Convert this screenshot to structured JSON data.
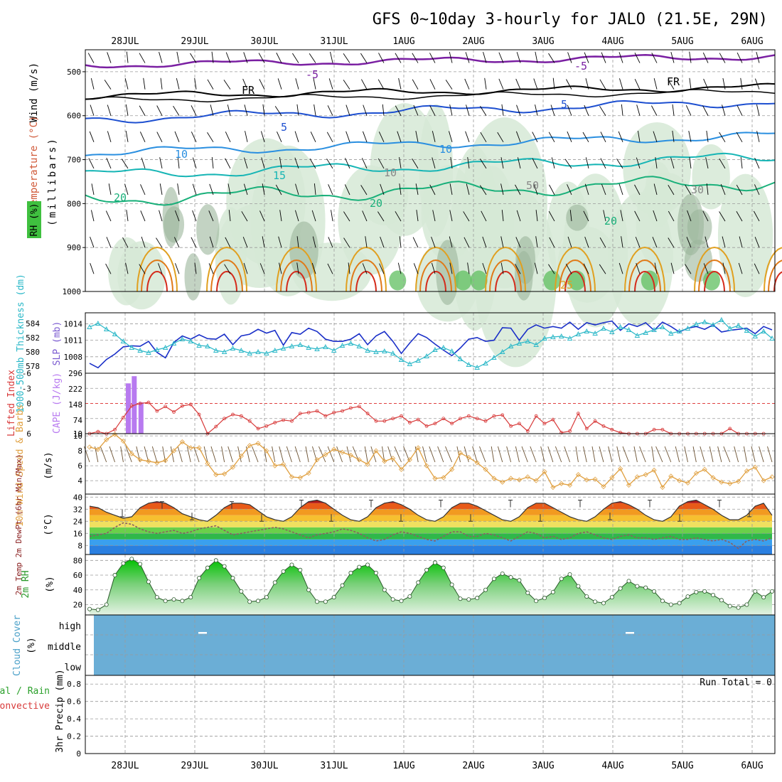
{
  "title": "GFS 0~10day 3-hourly for JALO (21.5E, 29N)",
  "dates": [
    "28JUL",
    "29JUL",
    "30JUL",
    "31JUL",
    "1AUG",
    "2AUG",
    "3AUG",
    "4AUG",
    "5AUG",
    "6AUG"
  ],
  "colors": {
    "frame": "#000000",
    "grid": "#9a9a9a",
    "rh_fill": "#d6e9d6",
    "rh_mid": "#9bb59b",
    "rh_high": "#5fbf5f",
    "temp_neg": "#7a1fa2",
    "temp_fr": "#000000",
    "temp_5": "#1d4fd0",
    "temp_10": "#2a8fe0",
    "temp_15": "#16b5b5",
    "temp_20": "#19b07a",
    "temp_25": "#e0a020",
    "temp_30": "#e07a18",
    "temp_35": "#d42a1a",
    "slp": "#1a2fc8",
    "thickness": "#2bb8c8",
    "cape": "#b87af0",
    "lifted": "#d83a3a",
    "wind10": "#e0a040",
    "cloud": "#6baed6",
    "dewpt": "#8a6060"
  },
  "charts": [
    {
      "id": "upper_air",
      "type": "contour",
      "ylabel": "(millibars)",
      "ylabel_parts": {
        "rh": "RH (%)",
        "temp": "Temperature (°C)",
        "wind": "Wind (m/s)"
      },
      "y_ticks": [
        500,
        600,
        700,
        800,
        900,
        1000
      ],
      "ylim": [
        1000,
        450
      ],
      "contour_labels": [
        "-5",
        "-5",
        "FR",
        "FR",
        "5",
        "5",
        "10",
        "10",
        "15",
        "20",
        "20",
        "20",
        "25",
        "10",
        "30",
        "50"
      ]
    },
    {
      "id": "thickness_slp",
      "type": "line",
      "ylabel_left": "1000-500mb Thickness (dm)",
      "ylabel_right": "SLP (mb)",
      "left_ticks": [
        578,
        580,
        582,
        584
      ],
      "right_ticks": [
        1008,
        1011,
        1014
      ],
      "slp_ylim": [
        1005,
        1016
      ],
      "thickness_ylim": [
        577,
        585.5
      ],
      "series": [
        {
          "name": "SLP (mb)",
          "values": [
            1006.8,
            1006.0,
            1007.5,
            1008.5,
            1009.8,
            1010.0,
            1009.9,
            1010.8,
            1008.8,
            1007.8,
            1010.6,
            1011.8,
            1011.2,
            1012.0,
            1011.3,
            1011.2,
            1012.1,
            1010.2,
            1011.8,
            1012.1,
            1013.0,
            1012.3,
            1012.8,
            1010.1,
            1012.4,
            1012.1,
            1013.2,
            1012.6,
            1011.2,
            1010.8,
            1010.8,
            1011.2,
            1012.2,
            1010.2,
            1011.8,
            1012.6,
            1010.8,
            1008.6,
            1010.5,
            1012.2,
            1011.5,
            1010.3,
            1009.2,
            1008.2,
            1009.6,
            1011.2,
            1011.5,
            1010.8,
            1011.0,
            1013.3,
            1013.2,
            1011.0,
            1013.0,
            1013.8,
            1013.2,
            1013.5,
            1013.2,
            1014.3,
            1013.0,
            1014.2,
            1013.8,
            1014.2,
            1014.5,
            1012.8,
            1014.0,
            1013.5,
            1014.2,
            1012.8,
            1014.3,
            1013.5,
            1012.5,
            1013.2,
            1013.5,
            1013.0,
            1013.8,
            1012.5,
            1012.8,
            1013.0,
            1013.2,
            1012.2,
            1013.5,
            1012.9
          ]
        },
        {
          "name": "1000-500mb Thickness (dm)",
          "values": [
            583.5,
            584.0,
            583.2,
            582.5,
            581.5,
            580.6,
            580.2,
            579.9,
            580.3,
            580.6,
            581.2,
            581.8,
            581.5,
            580.9,
            580.8,
            580.2,
            580.0,
            580.5,
            580.2,
            579.8,
            580.0,
            579.8,
            580.2,
            580.5,
            580.8,
            581.0,
            580.6,
            580.4,
            580.7,
            580.2,
            580.9,
            581.2,
            580.8,
            580.2,
            580.0,
            580.1,
            579.8,
            578.9,
            578.3,
            578.8,
            579.4,
            580.3,
            580.6,
            580.1,
            579.0,
            578.2,
            577.8,
            578.4,
            579.2,
            580.0,
            580.8,
            581.2,
            581.5,
            581.0,
            581.9,
            582.1,
            582.2,
            581.9,
            582.5,
            582.9,
            582.6,
            583.3,
            582.8,
            583.5,
            583.1,
            582.3,
            582.7,
            583.1,
            583.5,
            582.6,
            582.9,
            583.3,
            583.9,
            584.2,
            583.8,
            584.5,
            583.3,
            583.7,
            583.0,
            582.2,
            582.9,
            581.9
          ]
        }
      ]
    },
    {
      "id": "cape_li",
      "type": "bar+line",
      "ylabel_left": "Lifted Index",
      "ylabel_right": "CAPE (J/kg)",
      "left_ticks": [
        "-6",
        "-3",
        "0",
        "3",
        "6"
      ],
      "right_ticks": [
        10,
        74,
        148,
        222,
        296
      ],
      "li_ylim": [
        6,
        -6
      ],
      "cape_ylim": [
        10,
        296
      ],
      "cape": {
        "x": [
          4.6,
          5.3,
          6.1
        ],
        "values": [
          248,
          282,
          158
        ]
      },
      "lifted_index": {
        "x": [
          0,
          1,
          2,
          3,
          4,
          5,
          6,
          7,
          8,
          9,
          10,
          11,
          12,
          13,
          14,
          15,
          16,
          17,
          18,
          19,
          20,
          21,
          22,
          23,
          24,
          25,
          26,
          27,
          28,
          29,
          30,
          31,
          32,
          33,
          34,
          35,
          36,
          37,
          38,
          39,
          40,
          41,
          42,
          43,
          44,
          45,
          46,
          47,
          48,
          49,
          50,
          51,
          52,
          53,
          54,
          55,
          56,
          57,
          58,
          59,
          60,
          61,
          62,
          63,
          64,
          65,
          66,
          67,
          68,
          69,
          70,
          71,
          72,
          73,
          74,
          75,
          76,
          77,
          78,
          79,
          80
        ],
        "values": [
          6,
          5.6,
          6,
          5.2,
          2.8,
          0.5,
          0,
          -0.2,
          1.5,
          0.6,
          1.7,
          0.5,
          0.2,
          2.2,
          6,
          4.6,
          3.0,
          2.2,
          2.5,
          3.5,
          5.0,
          4.5,
          3.8,
          3.3,
          3.5,
          2.0,
          1.8,
          1.5,
          2.5,
          1.8,
          1.5,
          0.9,
          0.6,
          2.0,
          3.5,
          3.5,
          3.0,
          2.5,
          3.8,
          3.2,
          4.5,
          4.0,
          3.0,
          4.0,
          3.0,
          2.5,
          3.0,
          3.5,
          2.5,
          2.3,
          4.5,
          4.0,
          5.5,
          2.5,
          4.0,
          3.2,
          5.8,
          5.5,
          2.0,
          5.0,
          3.5,
          4.5,
          5.2,
          5.8,
          6,
          6,
          6,
          5.2,
          5.2,
          6,
          6,
          6,
          6,
          6,
          6,
          6,
          5.0,
          6,
          6,
          6,
          6
        ]
      },
      "li_scale_note": ""
    },
    {
      "id": "wind10",
      "type": "line",
      "ylabel": "10m Wind Speed & Barbs",
      "yunit": "(m/s)",
      "y_ticks": [
        4,
        6,
        8,
        10
      ],
      "ylim": [
        2.2,
        10.3
      ],
      "values": [
        8.5,
        8.2,
        9.5,
        10.2,
        9.3,
        7.6,
        6.8,
        6.6,
        6.4,
        6.7,
        8.0,
        9.2,
        8.4,
        8.4,
        6.3,
        4.8,
        4.9,
        5.8,
        7.3,
        8.7,
        9.0,
        8.0,
        6.0,
        6.2,
        4.5,
        4.4,
        5.0,
        6.8,
        7.5,
        8.2,
        7.8,
        7.4,
        6.8,
        6.2,
        8.0,
        6.6,
        7.0,
        5.5,
        6.8,
        8.4,
        6.0,
        4.3,
        4.4,
        5.5,
        7.7,
        7.1,
        6.4,
        5.5,
        4.3,
        3.8,
        4.3,
        4.1,
        4.5,
        4.0,
        5.2,
        3.1,
        3.6,
        3.4,
        4.8,
        4.1,
        4.2,
        3.2,
        4.4,
        5.6,
        3.4,
        4.5,
        4.8,
        5.4,
        3.1,
        4.6,
        4.0,
        3.7,
        5.0,
        5.5,
        4.4,
        3.8,
        3.6,
        3.9,
        5.3,
        5.8,
        4.0,
        4.5
      ]
    },
    {
      "id": "temp_dewpt",
      "type": "area+line",
      "ylabel": "2m Temp 2m DewPt (6hr Min/Max)",
      "yunit": "(°C)",
      "y_ticks": [
        8,
        16,
        24,
        32,
        40
      ],
      "ylim": [
        2,
        42
      ],
      "temp_values": [
        34,
        33,
        30,
        28,
        26,
        27,
        33,
        36,
        37,
        36,
        33,
        29,
        27,
        25,
        24,
        28,
        33,
        36,
        36,
        35,
        31,
        27,
        25,
        24,
        27,
        33,
        37,
        38,
        36,
        32,
        28,
        25,
        24,
        27,
        33,
        36,
        37,
        35,
        32,
        28,
        25,
        24,
        27,
        33,
        36,
        36,
        34,
        31,
        28,
        25,
        24,
        27,
        33,
        36,
        36,
        33,
        30,
        27,
        25,
        24,
        27,
        32,
        36,
        37,
        35,
        32,
        28,
        25,
        24,
        27,
        34,
        37,
        38,
        35,
        32,
        28,
        25,
        25,
        28,
        34,
        36,
        28
      ],
      "dewpt_values": [
        14,
        15,
        16,
        20,
        23,
        22,
        19,
        17,
        16,
        17,
        18,
        16,
        17,
        19,
        20,
        21,
        18,
        15,
        16,
        17,
        18,
        19,
        20,
        19,
        17,
        15,
        13,
        15,
        16,
        17,
        19,
        18,
        16,
        13,
        11,
        12,
        15,
        17,
        16,
        14,
        12,
        11,
        14,
        17,
        17,
        14,
        14,
        16,
        15,
        13,
        11,
        14,
        17,
        16,
        13,
        14,
        12,
        13,
        16,
        17,
        15,
        13,
        12,
        14,
        15,
        13,
        13,
        12,
        13,
        14,
        12,
        12,
        13,
        12,
        11,
        12,
        10,
        6,
        11,
        12,
        11,
        13
      ],
      "max_bars": [
        37,
        37,
        38,
        38,
        38,
        38,
        38,
        38,
        38,
        39
      ],
      "min_bars": [
        27,
        25,
        24,
        24,
        24,
        24,
        24,
        25,
        24,
        27
      ]
    },
    {
      "id": "rh2m",
      "type": "area",
      "ylabel": "2m RH",
      "yunit": "(%)",
      "y_ticks": [
        20,
        40,
        60,
        80
      ],
      "ylim": [
        6,
        88
      ],
      "values": [
        14,
        13,
        20,
        60,
        76,
        82,
        75,
        51,
        30,
        25,
        27,
        25,
        30,
        56,
        70,
        80,
        72,
        56,
        38,
        24,
        25,
        30,
        50,
        65,
        74,
        67,
        40,
        24,
        24,
        30,
        46,
        63,
        71,
        74,
        63,
        40,
        27,
        25,
        31,
        50,
        67,
        77,
        70,
        47,
        28,
        27,
        29,
        40,
        55,
        62,
        57,
        53,
        36,
        25,
        29,
        37,
        55,
        61,
        45,
        31,
        24,
        22,
        30,
        42,
        52,
        45,
        43,
        38,
        25,
        20,
        22,
        31,
        37,
        38,
        33,
        26,
        18,
        16,
        20,
        38,
        30,
        38
      ]
    },
    {
      "id": "cloud",
      "type": "heatmap",
      "ylabel": "Cloud Cover",
      "yunit": "(%)",
      "levels": [
        "high",
        "middle",
        "low"
      ],
      "value": "0"
    },
    {
      "id": "precip",
      "type": "bar",
      "ylabel": "3hr Precip (mm)",
      "ylabel_left": "Total / Rain",
      "ylabel_left2": "Convective",
      "y_ticks": [
        "0",
        "0.2",
        "0.4",
        "0.6",
        "0.8"
      ],
      "ylim": [
        0,
        0.9
      ],
      "run_total": "Run Total = 0",
      "values": []
    }
  ]
}
